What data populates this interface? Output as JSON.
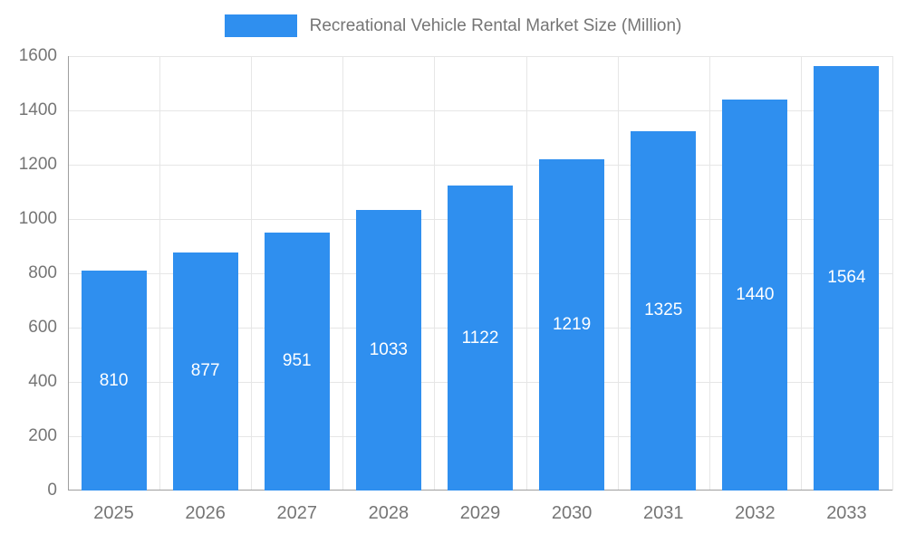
{
  "chart_data": {
    "type": "bar",
    "title": "Recreational Vehicle Rental Market Size (Million)",
    "categories": [
      "2025",
      "2026",
      "2027",
      "2028",
      "2029",
      "2030",
      "2031",
      "2032",
      "2033"
    ],
    "values": [
      810,
      877,
      951,
      1033,
      1122,
      1219,
      1325,
      1440,
      1564
    ],
    "xlabel": "",
    "ylabel": "",
    "ylim": [
      0,
      1600
    ],
    "ytick_step": 200,
    "ytick_labels": [
      "0",
      "200",
      "400",
      "600",
      "800",
      "1000",
      "1200",
      "1400",
      "1600"
    ],
    "grid": true,
    "legend_position": "top",
    "colors": {
      "bar": "#2f8fef",
      "grid": "#e6e6e6",
      "axis": "#9e9e9e",
      "tick_text": "#757575",
      "value_text": "#ffffff",
      "background": "#ffffff"
    }
  }
}
